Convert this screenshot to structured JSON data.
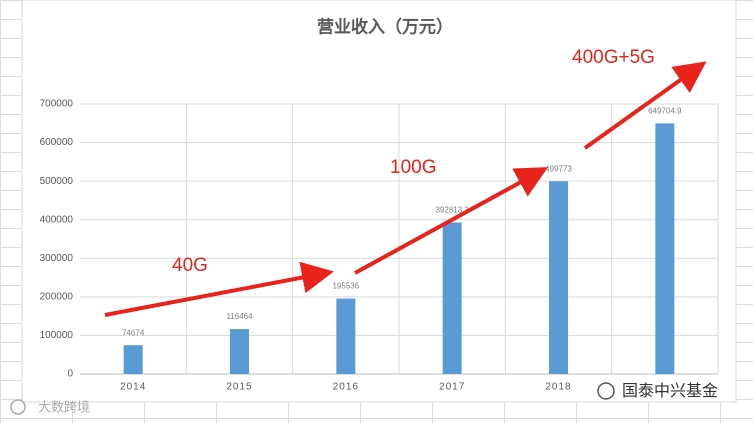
{
  "chart_data": {
    "type": "bar",
    "title": "营业收入（万元）",
    "categories": [
      "2014",
      "2015",
      "2016",
      "2017",
      "2018",
      null
    ],
    "values": [
      74674,
      116464,
      195536,
      392813.3,
      499773,
      649704.9
    ],
    "color": "#5b9bd5",
    "ylim": [
      0,
      700000
    ],
    "yticks": [
      0,
      100000,
      200000,
      300000,
      400000,
      500000,
      600000,
      700000
    ],
    "grid": true,
    "annotations": [
      "40G",
      "100G",
      "400G+5G"
    ]
  },
  "watermarks": [
    "国泰中兴基金",
    "大数跨境"
  ]
}
